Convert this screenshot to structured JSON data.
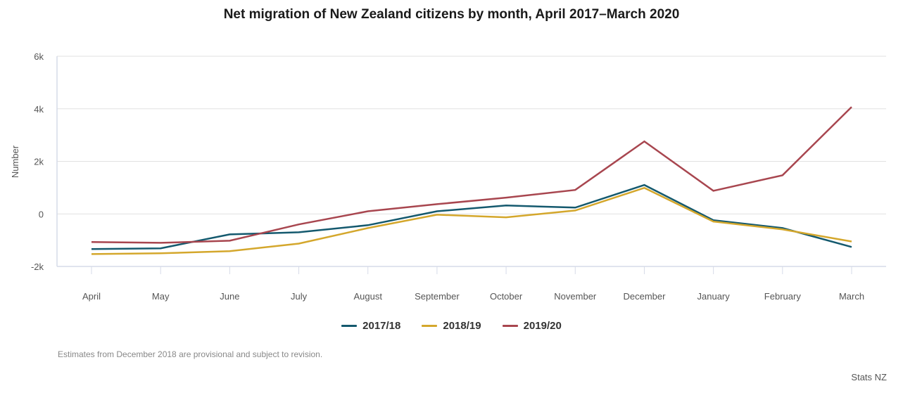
{
  "colors": {
    "series_2017_18": "#14596e",
    "series_2018_19": "#d4a72c",
    "series_2019_20": "#a8464f",
    "grid": "#e1e1e1",
    "axis": "#d6dbe8"
  },
  "chart_data": {
    "type": "line",
    "title": "Net migration of New Zealand citizens by month, April 2017–March 2020",
    "xlabel": "",
    "ylabel": "Number",
    "ylim": [
      -2000,
      6000
    ],
    "yticks": [
      -2000,
      0,
      2000,
      4000,
      6000
    ],
    "ytick_labels": [
      "-2k",
      "0",
      "2k",
      "4k",
      "6k"
    ],
    "grid": true,
    "legend_position": "bottom",
    "categories": [
      "April",
      "May",
      "June",
      "July",
      "August",
      "September",
      "October",
      "November",
      "December",
      "January",
      "February",
      "March"
    ],
    "series": [
      {
        "name": "2017/18",
        "color_key": "series_2017_18",
        "values": [
          -1340,
          -1310,
          -780,
          -700,
          -430,
          100,
          320,
          240,
          1100,
          -240,
          -540,
          -1260
        ]
      },
      {
        "name": "2018/19",
        "color_key": "series_2018_19",
        "values": [
          -1530,
          -1500,
          -1420,
          -1130,
          -540,
          -30,
          -130,
          130,
          990,
          -290,
          -590,
          -1050
        ]
      },
      {
        "name": "2019/20",
        "color_key": "series_2019_20",
        "values": [
          -1070,
          -1100,
          -1020,
          -400,
          100,
          370,
          620,
          910,
          2760,
          880,
          1470,
          4070
        ]
      }
    ]
  },
  "footer": {
    "note": "Estimates from December 2018 are provisional and subject to revision.",
    "credit": "Stats NZ"
  }
}
